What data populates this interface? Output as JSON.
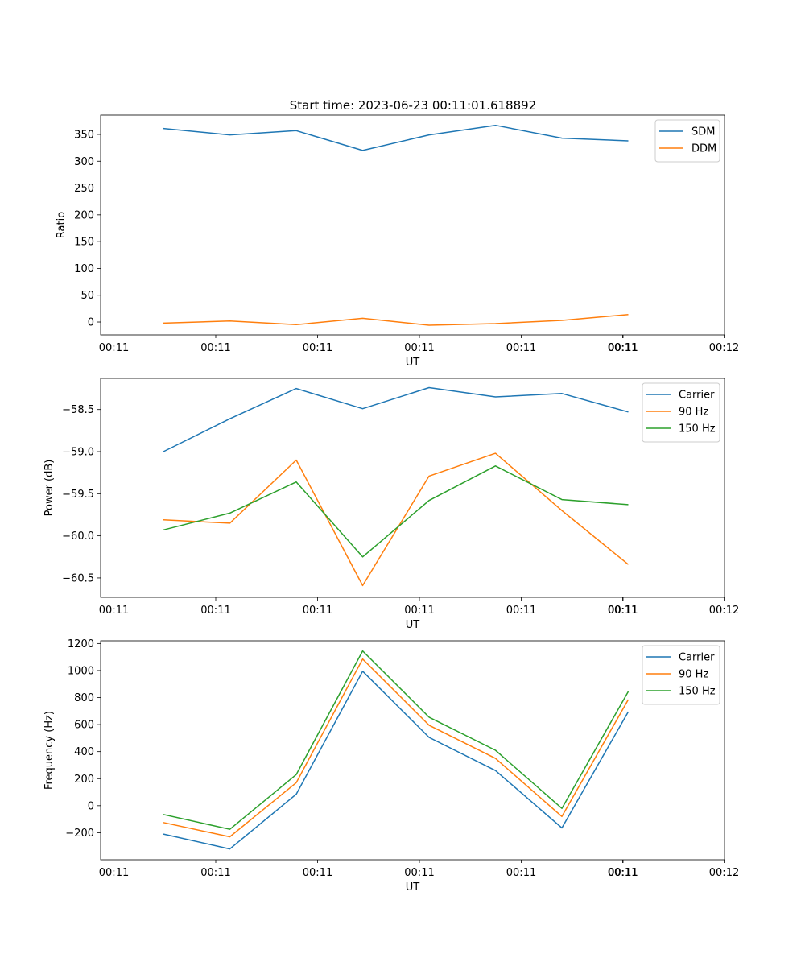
{
  "figure": {
    "title": "Start time: 2023-06-23 00:11:01.618892"
  },
  "chart_data": [
    {
      "type": "line",
      "title": "Start time: 2023-06-23 00:11:01.618892",
      "xlabel": "UT",
      "ylabel": "Ratio",
      "x_tick_labels": [
        "00:11",
        "00:11",
        "00:11",
        "00:11",
        "00:11",
        "00:11",
        "00:11",
        "00:12"
      ],
      "y_ticks": [
        0,
        50,
        100,
        150,
        200,
        250,
        300,
        350
      ],
      "ylim": [
        -24,
        386
      ],
      "grid": false,
      "legend_position": "top-right",
      "series": [
        {
          "name": "SDM",
          "color": "#1f77b4",
          "values": [
            361,
            349,
            357,
            320,
            349,
            367,
            343,
            338
          ]
        },
        {
          "name": "DDM",
          "color": "#ff7f0e",
          "values": [
            -2,
            2,
            -5,
            7,
            -6,
            -3,
            3,
            14
          ]
        }
      ]
    },
    {
      "type": "line",
      "xlabel": "UT",
      "ylabel": "Power (dB)",
      "x_tick_labels": [
        "00:11",
        "00:11",
        "00:11",
        "00:11",
        "00:11",
        "00:11",
        "00:11",
        "00:12"
      ],
      "y_ticks": [
        -58.5,
        -59.0,
        -59.5,
        -60.0,
        -60.5
      ],
      "y_tick_labels": [
        "−58.5",
        "−59.0",
        "−59.5",
        "−60.0",
        "−60.5"
      ],
      "ylim": [
        -60.73,
        -58.13
      ],
      "grid": false,
      "legend_position": "top-right",
      "series": [
        {
          "name": "Carrier",
          "color": "#1f77b4",
          "values": [
            -59.0,
            -58.61,
            -58.25,
            -58.49,
            -58.24,
            -58.35,
            -58.31,
            -58.53
          ]
        },
        {
          "name": "90 Hz",
          "color": "#ff7f0e",
          "values": [
            -59.81,
            -59.85,
            -59.1,
            -60.59,
            -59.29,
            -59.02,
            -59.7,
            -60.34
          ]
        },
        {
          "name": "150 Hz",
          "color": "#2ca02c",
          "values": [
            -59.93,
            -59.73,
            -59.36,
            -60.25,
            -59.58,
            -59.17,
            -59.57,
            -59.63
          ]
        }
      ]
    },
    {
      "type": "line",
      "xlabel": "UT",
      "ylabel": "Frequency (Hz)",
      "x_tick_labels": [
        "00:11",
        "00:11",
        "00:11",
        "00:11",
        "00:11",
        "00:11",
        "00:11",
        "00:12"
      ],
      "y_ticks": [
        -200,
        0,
        200,
        400,
        600,
        800,
        1000,
        1200
      ],
      "y_tick_labels": [
        "−200",
        "0",
        "200",
        "400",
        "600",
        "800",
        "1000",
        "1200"
      ],
      "ylim": [
        -400,
        1220
      ],
      "grid": false,
      "legend_position": "top-right",
      "series": [
        {
          "name": "Carrier",
          "color": "#1f77b4",
          "values": [
            -210,
            -320,
            85,
            995,
            505,
            260,
            -165,
            695
          ]
        },
        {
          "name": "90 Hz",
          "color": "#ff7f0e",
          "values": [
            -125,
            -230,
            170,
            1085,
            595,
            350,
            -80,
            785
          ]
        },
        {
          "name": "150 Hz",
          "color": "#2ca02c",
          "values": [
            -65,
            -175,
            230,
            1145,
            655,
            410,
            -20,
            845
          ]
        }
      ]
    }
  ]
}
